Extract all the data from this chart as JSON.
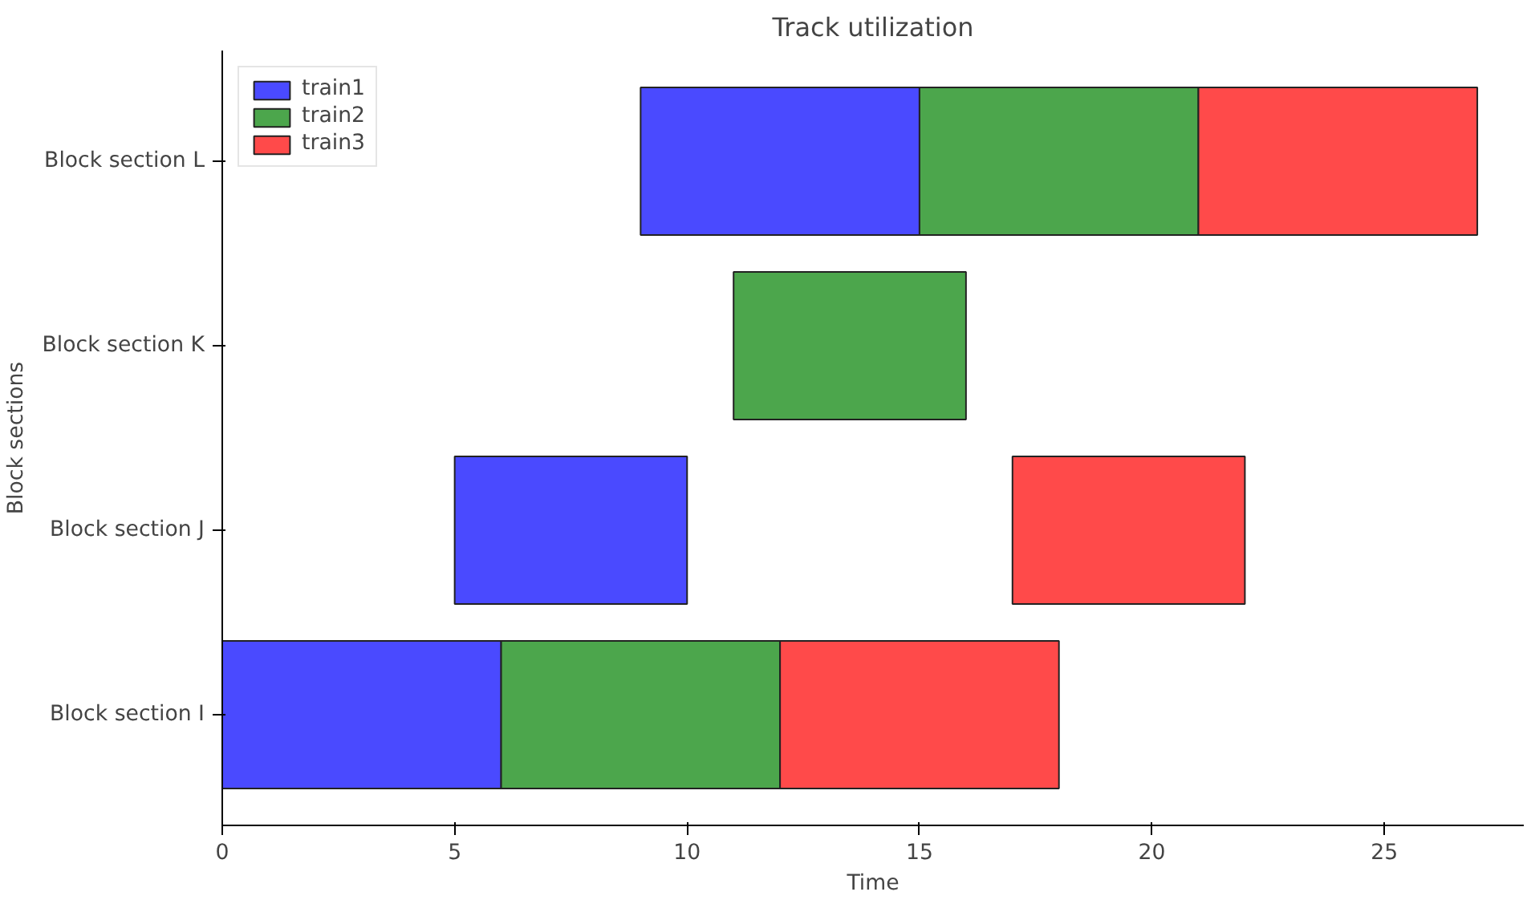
{
  "chart_data": {
    "type": "bar",
    "orientation": "horizontal",
    "title": "Track utilization",
    "xlabel": "Time",
    "ylabel": "Block sections",
    "categories": [
      "Block section L",
      "Block section K",
      "Block section J",
      "Block section I"
    ],
    "series": [
      {
        "name": "train1",
        "color": "#4a4aff",
        "values": [
          6,
          null,
          5,
          6
        ],
        "base": [
          9,
          null,
          5,
          0
        ]
      },
      {
        "name": "train2",
        "color": "#4ca64c",
        "values": [
          6,
          5,
          null,
          6
        ],
        "base": [
          15,
          11,
          null,
          6
        ]
      },
      {
        "name": "train3",
        "color": "#ff4a4a",
        "values": [
          6,
          null,
          5,
          6
        ],
        "base": [
          21,
          null,
          17,
          12
        ]
      }
    ],
    "xlim": [
      0,
      28
    ],
    "xticks": [
      0,
      5,
      10,
      15,
      20,
      25
    ],
    "grid": false,
    "legend": "top left"
  }
}
